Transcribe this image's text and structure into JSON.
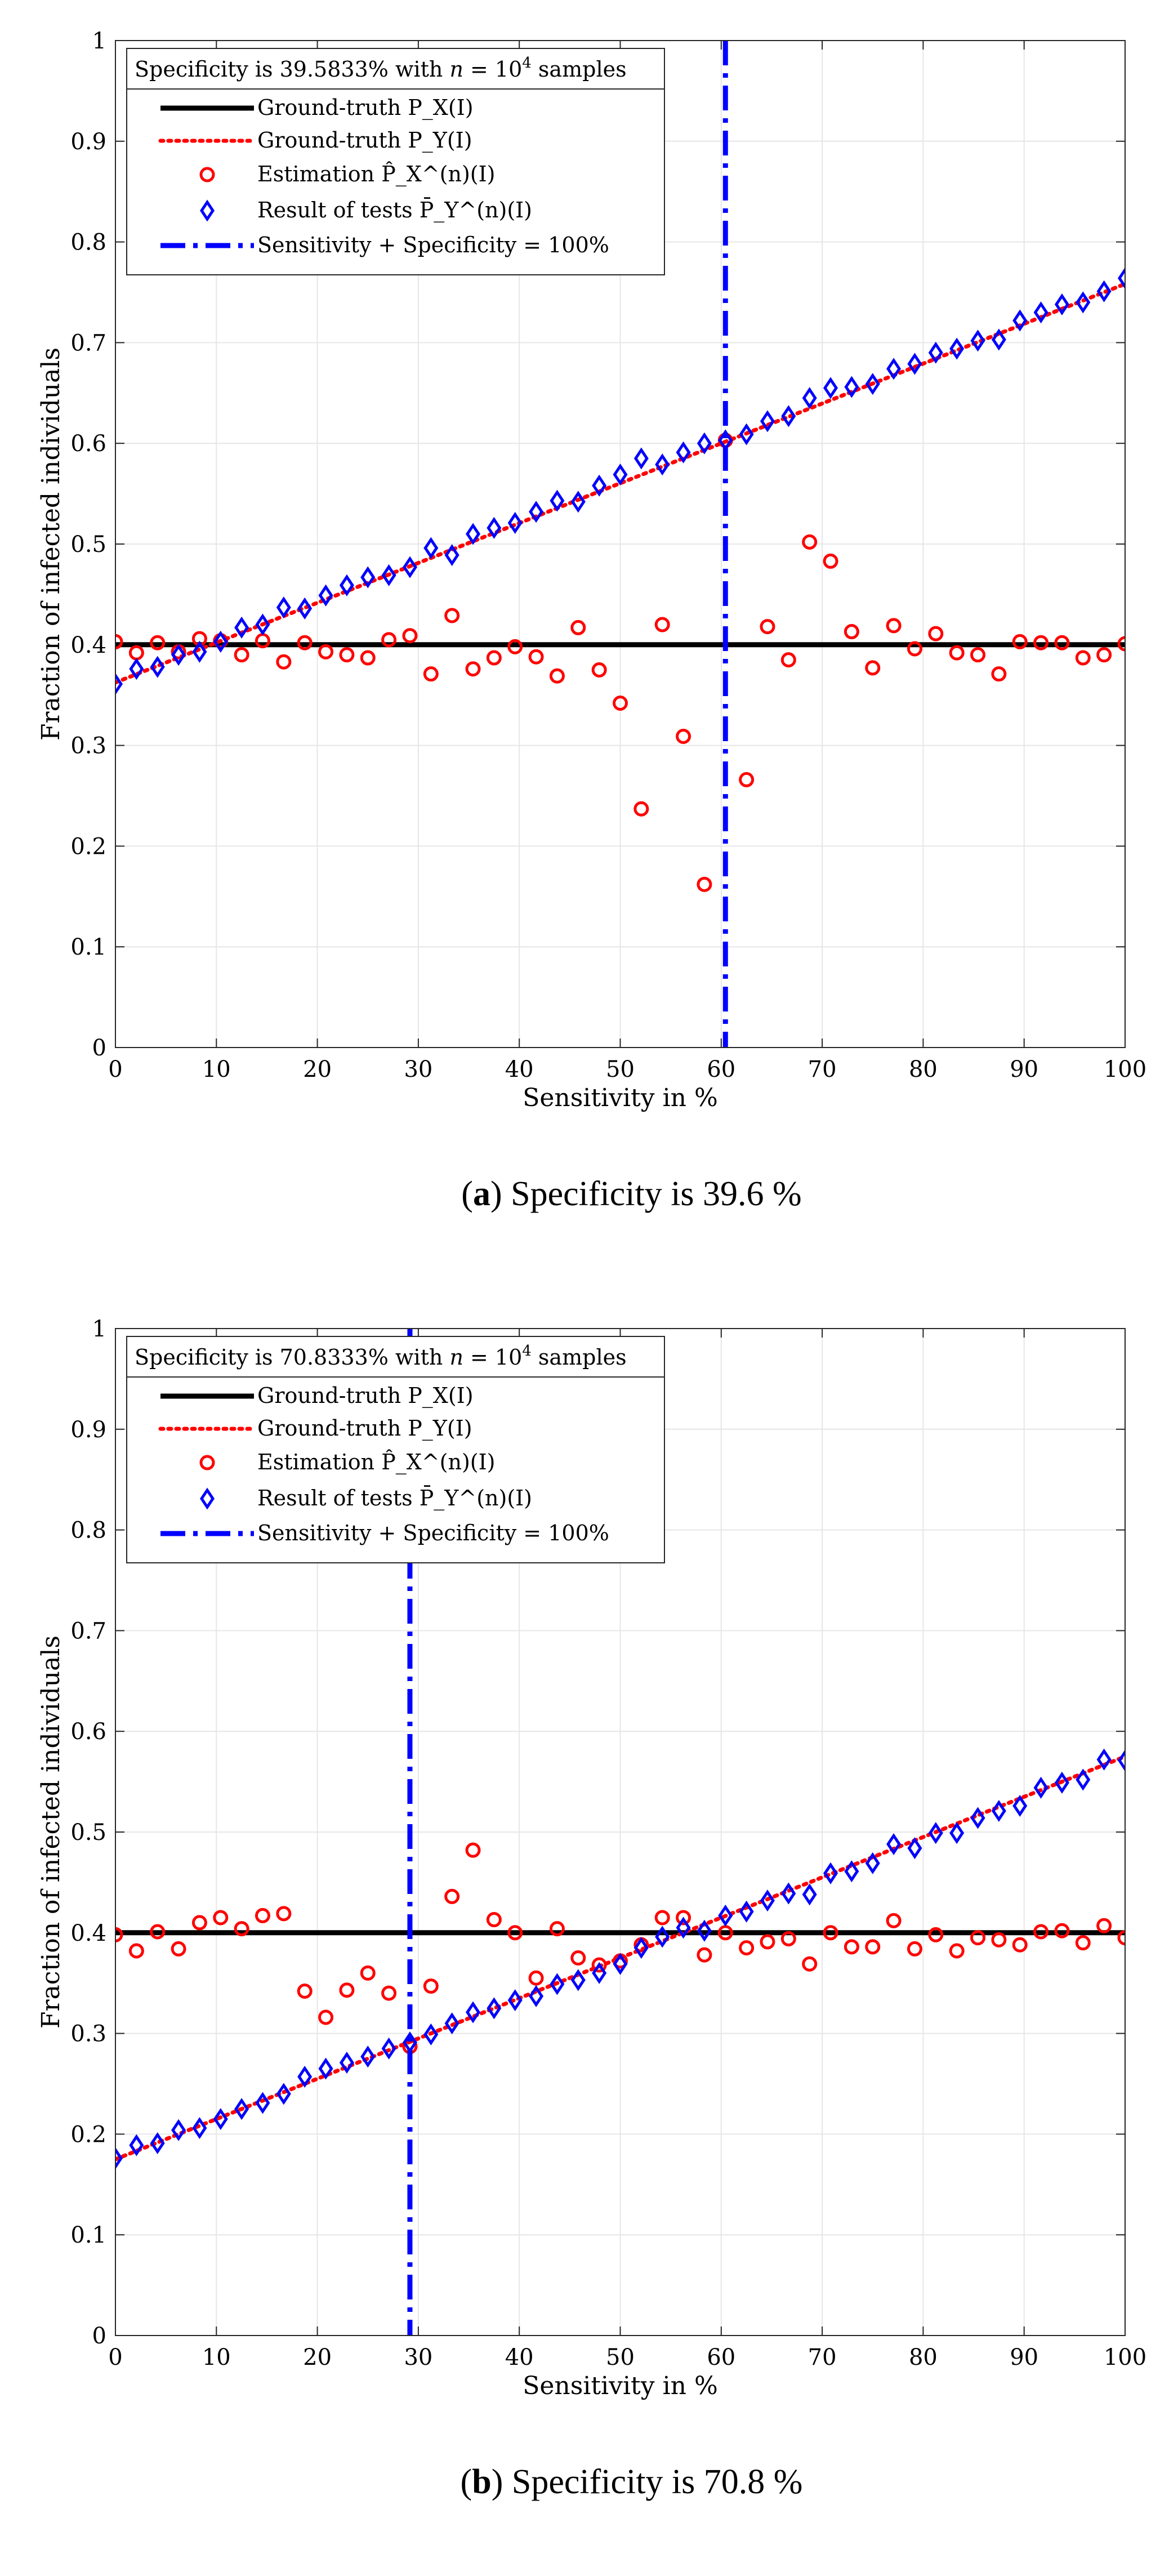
{
  "chart_data": [
    {
      "type": "scatter",
      "title": "Specificity is 39.5833% with n = 10^4 samples",
      "legend_title_parts": {
        "prefix": "Specificity is 39.5833% with ",
        "n": "n",
        "eq": " = 10",
        "exp": "4",
        "suffix": " samples"
      },
      "xlabel": "Sensitivity in %",
      "ylabel": "Fraction of infected individuals",
      "xlim": [
        0,
        100
      ],
      "ylim": [
        0,
        1
      ],
      "xticks": [
        0,
        10,
        20,
        30,
        40,
        50,
        60,
        70,
        80,
        90,
        100
      ],
      "yticks": [
        0,
        0.1,
        0.2,
        0.3,
        0.4,
        0.5,
        0.6,
        0.7,
        0.8,
        0.9,
        1
      ],
      "grid": true,
      "legend_position": "top-left",
      "legend": [
        "Ground-truth P_X(I)",
        "Ground-truth P_Y(I)",
        "Estimation P̂_X^(n)(I)",
        "Result of tests P̄_Y^(n)(I)",
        "Sensitivity + Specificity = 100%"
      ],
      "specificity": 0.395833,
      "vertical_line_x": 60.4167,
      "series": [
        {
          "name": "Ground-truth P_X(I)",
          "kind": "line",
          "color": "#000000",
          "x": [
            0,
            100
          ],
          "values": [
            0.4,
            0.4
          ]
        },
        {
          "name": "Ground-truth P_Y(I)",
          "kind": "dotted-line",
          "color": "#ff0000",
          "x": [
            0,
            100
          ],
          "values": [
            0.3625,
            0.7583
          ]
        },
        {
          "name": "Estimation",
          "kind": "circle",
          "color": "#ff0000",
          "x": [
            0,
            2.083,
            4.167,
            6.25,
            8.333,
            10.417,
            12.5,
            14.583,
            16.667,
            18.75,
            20.833,
            22.917,
            25,
            27.083,
            29.167,
            31.25,
            33.333,
            35.417,
            37.5,
            39.583,
            41.667,
            43.75,
            45.833,
            47.917,
            50,
            52.083,
            54.167,
            56.25,
            58.333,
            60.417,
            62.5,
            64.583,
            66.667,
            68.75,
            70.833,
            72.917,
            75,
            77.083,
            79.167,
            81.25,
            83.333,
            85.417,
            87.5,
            89.583,
            91.667,
            93.75,
            95.833,
            97.917,
            100
          ],
          "values": [
            0.403,
            0.392,
            0.402,
            0.393,
            0.406,
            0.404,
            0.39,
            0.404,
            0.383,
            0.402,
            0.393,
            0.39,
            0.387,
            0.405,
            0.409,
            0.371,
            0.429,
            0.376,
            0.387,
            0.398,
            0.388,
            0.369,
            0.417,
            0.375,
            0.342,
            0.237,
            0.42,
            0.309,
            0.162,
            0.603,
            0.266,
            0.418,
            0.385,
            0.502,
            0.483,
            0.413,
            0.377,
            0.419,
            0.396,
            0.411,
            0.392,
            0.39,
            0.371,
            0.403,
            0.402,
            0.402,
            0.387,
            0.39,
            0.401
          ]
        },
        {
          "name": "Result of tests",
          "kind": "diamond",
          "color": "#0000ff",
          "x": [
            0,
            2.083,
            4.167,
            6.25,
            8.333,
            10.417,
            12.5,
            14.583,
            16.667,
            18.75,
            20.833,
            22.917,
            25,
            27.083,
            29.167,
            31.25,
            33.333,
            35.417,
            37.5,
            39.583,
            41.667,
            43.75,
            45.833,
            47.917,
            50,
            52.083,
            54.167,
            56.25,
            58.333,
            60.417,
            62.5,
            64.583,
            66.667,
            68.75,
            70.833,
            72.917,
            75,
            77.083,
            79.167,
            81.25,
            83.333,
            85.417,
            87.5,
            89.583,
            91.667,
            93.75,
            95.833,
            97.917,
            100
          ],
          "values": [
            0.361,
            0.376,
            0.378,
            0.39,
            0.393,
            0.403,
            0.417,
            0.42,
            0.437,
            0.436,
            0.449,
            0.459,
            0.467,
            0.469,
            0.477,
            0.496,
            0.489,
            0.51,
            0.516,
            0.521,
            0.532,
            0.543,
            0.542,
            0.558,
            0.569,
            0.585,
            0.579,
            0.591,
            0.6,
            0.603,
            0.609,
            0.622,
            0.627,
            0.645,
            0.655,
            0.656,
            0.659,
            0.674,
            0.679,
            0.69,
            0.694,
            0.702,
            0.703,
            0.722,
            0.73,
            0.738,
            0.74,
            0.751,
            0.764
          ]
        }
      ],
      "caption": {
        "label": "a",
        "text": " Specificity is 39.6 %"
      }
    },
    {
      "type": "scatter",
      "title": "Specificity is 70.8333% with n = 10^4 samples",
      "legend_title_parts": {
        "prefix": "Specificity is 70.8333% with ",
        "n": "n",
        "eq": " = 10",
        "exp": "4",
        "suffix": " samples"
      },
      "xlabel": "Sensitivity in %",
      "ylabel": "Fraction of infected individuals",
      "xlim": [
        0,
        100
      ],
      "ylim": [
        0,
        1
      ],
      "xticks": [
        0,
        10,
        20,
        30,
        40,
        50,
        60,
        70,
        80,
        90,
        100
      ],
      "yticks": [
        0,
        0.1,
        0.2,
        0.3,
        0.4,
        0.5,
        0.6,
        0.7,
        0.8,
        0.9,
        1
      ],
      "grid": true,
      "legend_position": "top-left",
      "legend": [
        "Ground-truth P_X(I)",
        "Ground-truth P_Y(I)",
        "Estimation P̂_X^(n)(I)",
        "Result of tests P̄_Y^(n)(I)",
        "Sensitivity + Specificity = 100%"
      ],
      "specificity": 0.708333,
      "vertical_line_x": 29.1667,
      "series": [
        {
          "name": "Ground-truth P_X(I)",
          "kind": "line",
          "color": "#000000",
          "x": [
            0,
            100
          ],
          "values": [
            0.4,
            0.4
          ]
        },
        {
          "name": "Ground-truth P_Y(I)",
          "kind": "dotted-line",
          "color": "#ff0000",
          "x": [
            0,
            100
          ],
          "values": [
            0.175,
            0.575
          ]
        },
        {
          "name": "Estimation",
          "kind": "circle",
          "color": "#ff0000",
          "x": [
            0,
            2.083,
            4.167,
            6.25,
            8.333,
            10.417,
            12.5,
            14.583,
            16.667,
            18.75,
            20.833,
            22.917,
            25,
            27.083,
            29.167,
            31.25,
            33.333,
            35.417,
            37.5,
            39.583,
            41.667,
            43.75,
            45.833,
            47.917,
            50,
            52.083,
            54.167,
            56.25,
            58.333,
            60.417,
            62.5,
            64.583,
            66.667,
            68.75,
            70.833,
            72.917,
            75,
            77.083,
            79.167,
            81.25,
            83.333,
            85.417,
            87.5,
            89.583,
            91.667,
            93.75,
            95.833,
            97.917,
            100
          ],
          "values": [
            0.398,
            0.382,
            0.401,
            0.384,
            0.41,
            0.415,
            0.404,
            0.417,
            0.419,
            0.342,
            0.316,
            0.343,
            0.36,
            0.34,
            0.287,
            0.347,
            0.436,
            0.482,
            0.413,
            0.4,
            0.355,
            0.404,
            0.375,
            0.368,
            0.372,
            0.388,
            0.415,
            0.415,
            0.378,
            0.4,
            0.385,
            0.391,
            0.394,
            0.369,
            0.4,
            0.386,
            0.386,
            0.412,
            0.384,
            0.398,
            0.382,
            0.395,
            0.393,
            0.388,
            0.401,
            0.402,
            0.39,
            0.407,
            0.395
          ]
        },
        {
          "name": "Result of tests",
          "kind": "diamond",
          "color": "#0000ff",
          "x": [
            0,
            2.083,
            4.167,
            6.25,
            8.333,
            10.417,
            12.5,
            14.583,
            16.667,
            18.75,
            20.833,
            22.917,
            25,
            27.083,
            29.167,
            31.25,
            33.333,
            35.417,
            37.5,
            39.583,
            41.667,
            43.75,
            45.833,
            47.917,
            50,
            52.083,
            54.167,
            56.25,
            58.333,
            60.417,
            62.5,
            64.583,
            66.667,
            68.75,
            70.833,
            72.917,
            75,
            77.083,
            79.167,
            81.25,
            83.333,
            85.417,
            87.5,
            89.583,
            91.667,
            93.75,
            95.833,
            97.917,
            100
          ],
          "values": [
            0.176,
            0.189,
            0.191,
            0.204,
            0.206,
            0.215,
            0.225,
            0.231,
            0.24,
            0.257,
            0.265,
            0.271,
            0.277,
            0.285,
            0.291,
            0.299,
            0.31,
            0.321,
            0.325,
            0.333,
            0.337,
            0.349,
            0.353,
            0.36,
            0.369,
            0.385,
            0.396,
            0.405,
            0.402,
            0.417,
            0.421,
            0.432,
            0.439,
            0.438,
            0.459,
            0.461,
            0.469,
            0.488,
            0.484,
            0.499,
            0.499,
            0.514,
            0.521,
            0.526,
            0.544,
            0.549,
            0.552,
            0.572,
            0.571
          ]
        }
      ],
      "caption": {
        "label": "b",
        "text": " Specificity is 70.8 %"
      }
    }
  ]
}
